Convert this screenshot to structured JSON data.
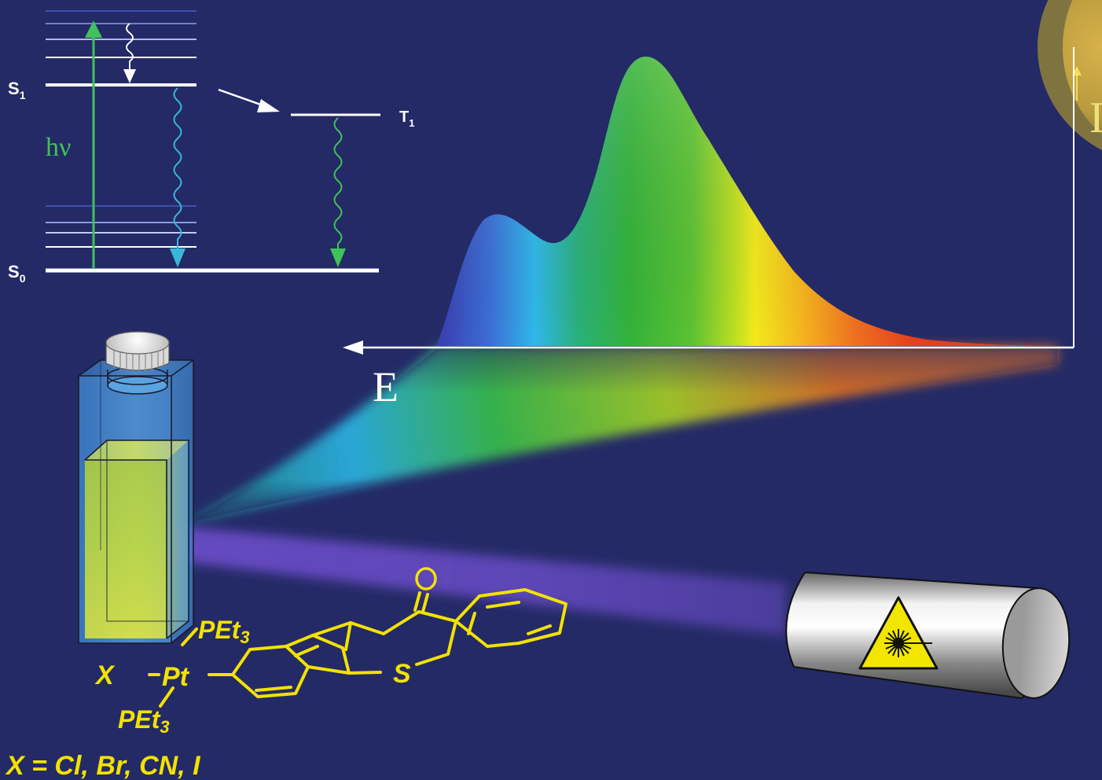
{
  "jablonski": {
    "s1_label": "S",
    "s1_sub": "1",
    "s0_label": "S",
    "s0_sub": "0",
    "t1_label": "T",
    "t1_sub": "1",
    "excitation_label": "hν"
  },
  "spectrum": {
    "x_axis_label": "E",
    "y_axis_label": "I"
  },
  "molecule": {
    "ligand_top": "PEt",
    "ligand_top_sub": "3",
    "ligand_bottom": "PEt",
    "ligand_bottom_sub": "3",
    "halide": "X",
    "metal": "Pt",
    "sulfur": "S",
    "oxygen": "O",
    "substituents": "X = Cl, Br, CN, I"
  },
  "colors": {
    "background": "#242a66",
    "ink": "#ffffff",
    "molecule": "#f2e200",
    "excitation_arrow": "#3fc25a",
    "fluorescence_arrow": "#39b6d8",
    "phosphorescence_arrow": "#3fc25a",
    "laser_beam": "#6a4cc8"
  },
  "icons": {
    "laser_warning": "laser-warning-icon"
  }
}
